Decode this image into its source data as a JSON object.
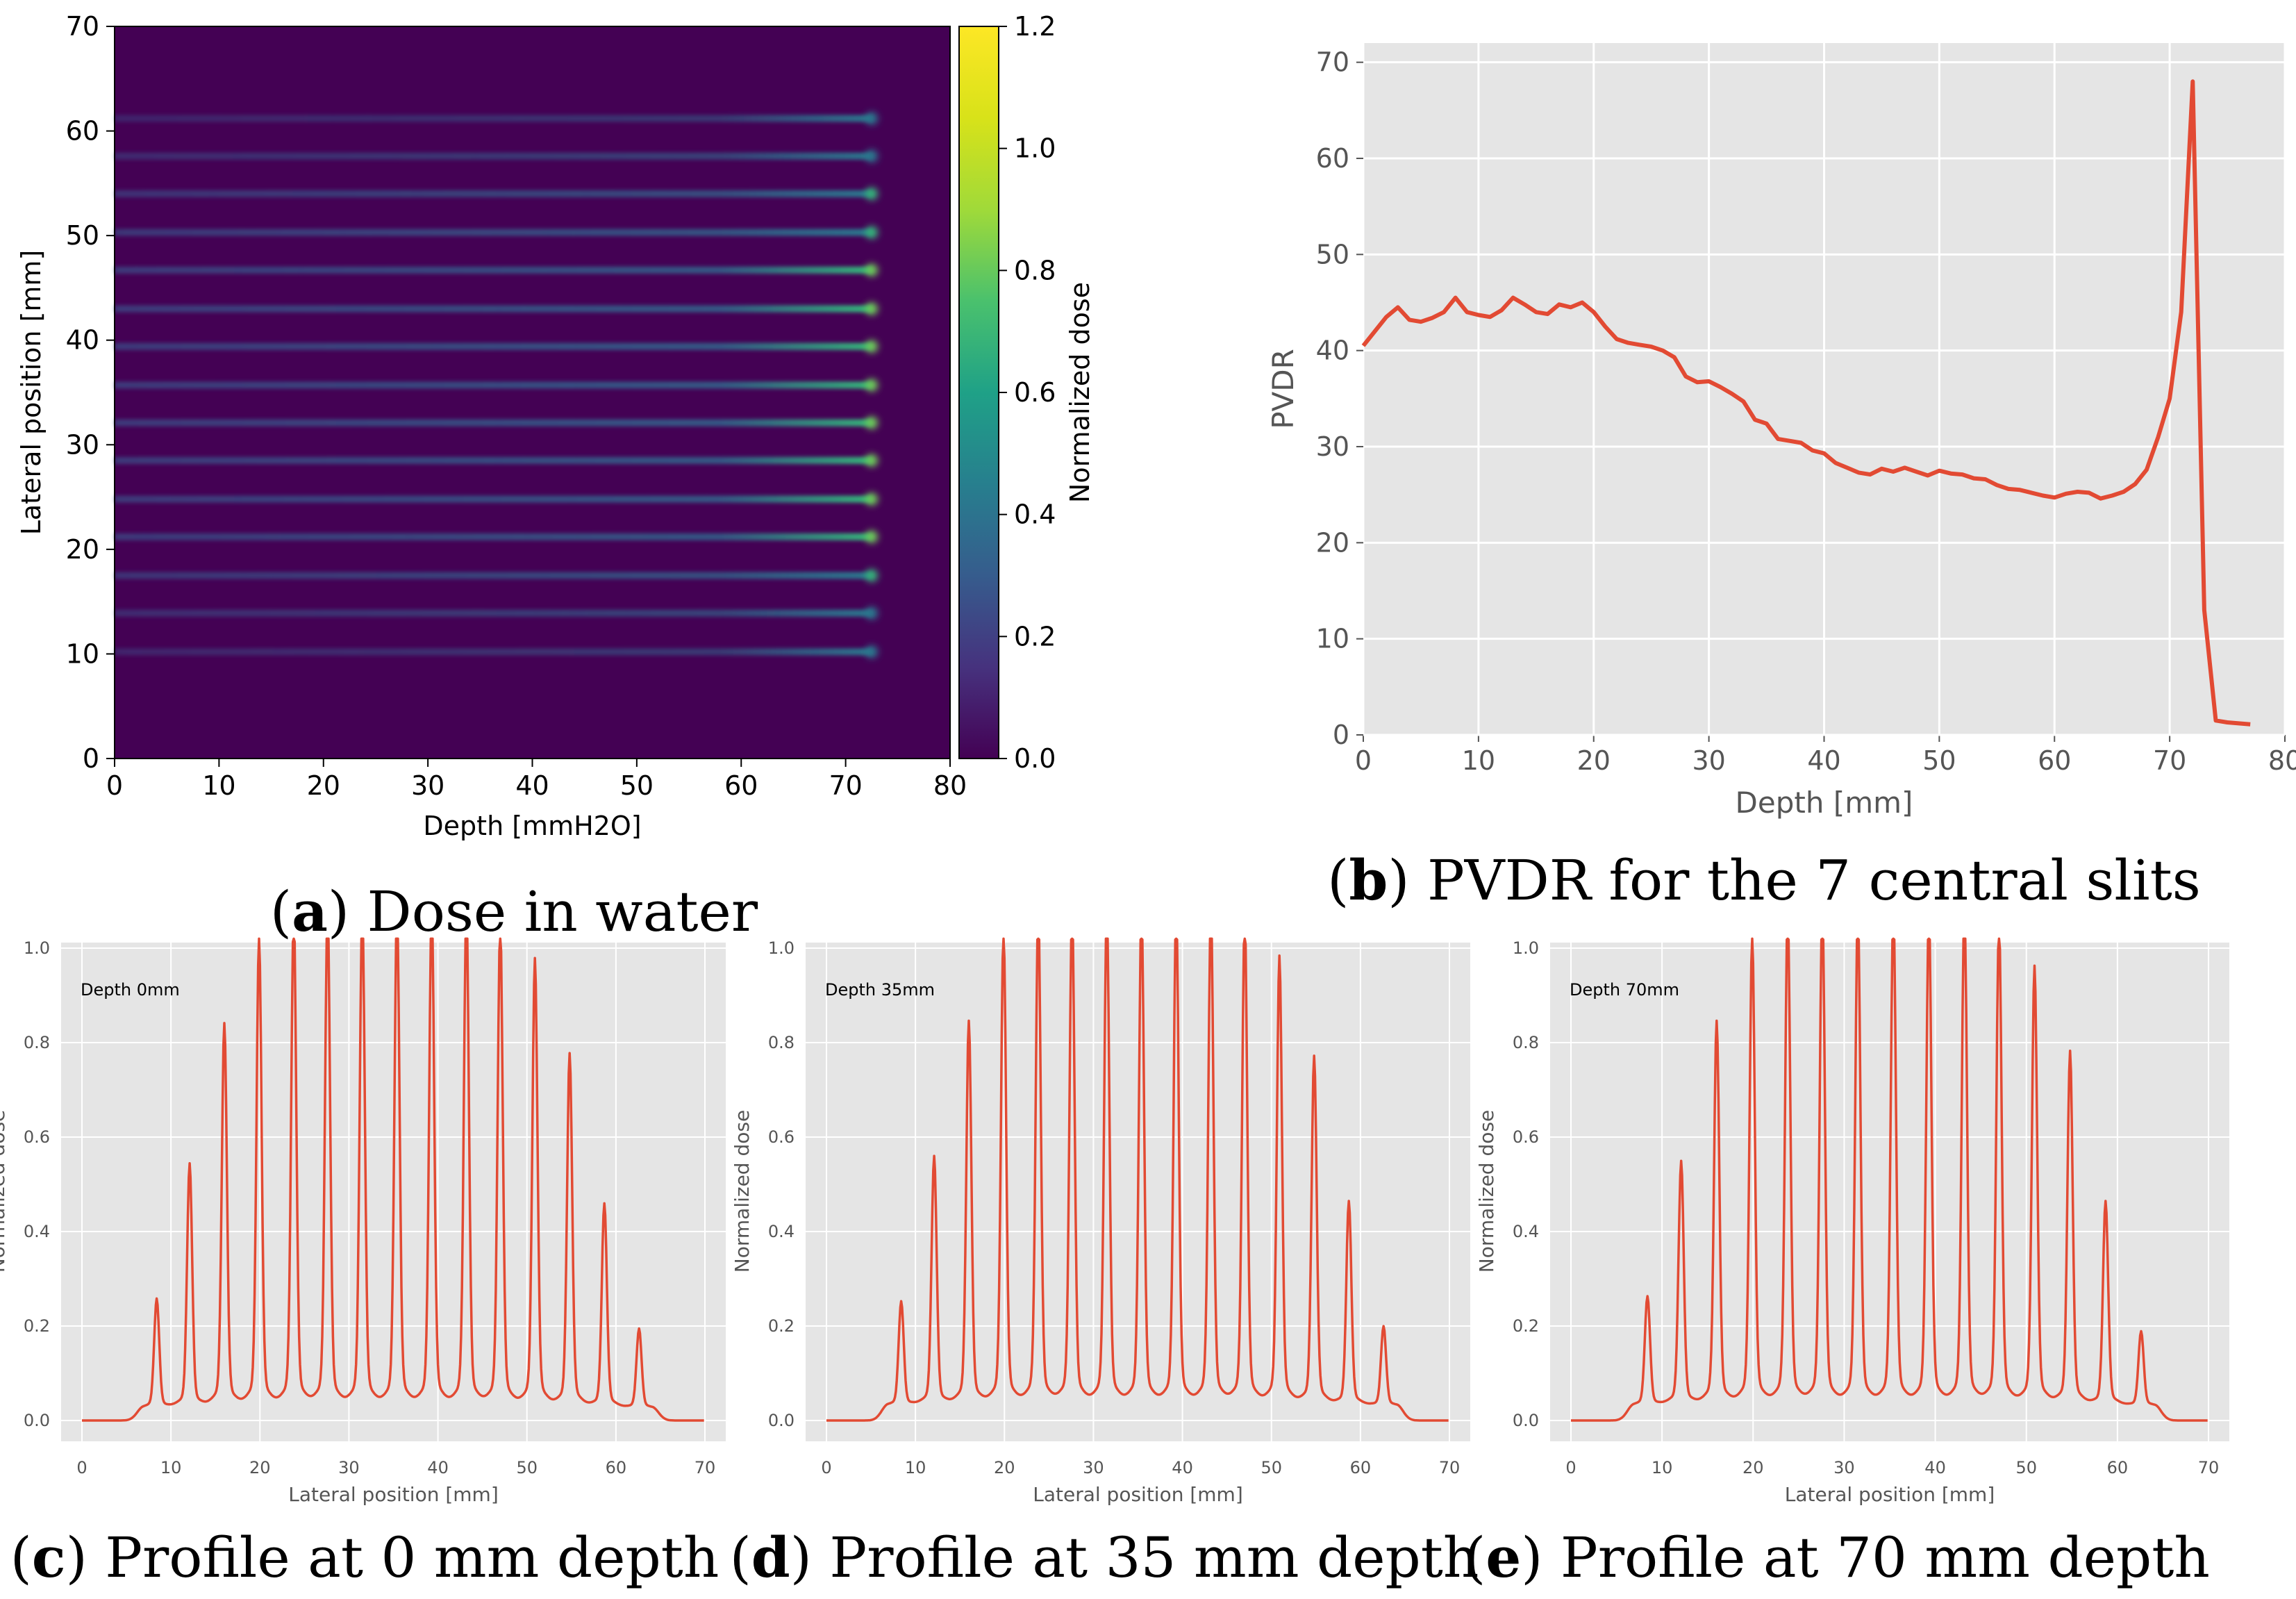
{
  "figure": {
    "captions": [
      {
        "letter": "a",
        "text": " Dose in water"
      },
      {
        "letter": "b",
        "text": " PVDR for the 7 central slits"
      },
      {
        "letter": "c",
        "text": " Profile at 0 mm depth"
      },
      {
        "letter": "d",
        "text": " Profile at 35 mm depth"
      },
      {
        "letter": "e",
        "text": " Profile at 70 mm depth"
      }
    ]
  },
  "chart_data": [
    {
      "id": "a",
      "type": "heatmap",
      "title": "",
      "xlabel": "Depth [mmH2O]",
      "ylabel": "Lateral position [mm]",
      "xlim": [
        0,
        80
      ],
      "ylim": [
        0,
        70
      ],
      "xticks": [
        0,
        10,
        20,
        30,
        40,
        50,
        60,
        70,
        80
      ],
      "yticks": [
        0,
        10,
        20,
        30,
        40,
        50,
        60,
        70
      ],
      "colorbar": {
        "label": "Normalized dose",
        "range": [
          0,
          1.2
        ],
        "ticks": [
          "0.0",
          "0.2",
          "0.4",
          "0.6",
          "0.8",
          "1.0",
          "1.2"
        ],
        "colormap": "viridis"
      },
      "slit_positions_mm": [
        10.2,
        13.9,
        17.5,
        21.2,
        24.8,
        28.5,
        32.1,
        35.7,
        39.4,
        43.0,
        46.7,
        50.3,
        54.0,
        57.6,
        61.2
      ],
      "slit_end_depth_mm": 72.5,
      "slit_peak_dose_at_end": [
        0.25,
        0.5,
        0.78,
        0.93,
        0.98,
        0.99,
        1.0,
        1.0,
        1.0,
        1.0,
        0.98,
        0.88,
        0.72,
        0.42,
        0.17
      ],
      "colors": {
        "background": "#440154"
      }
    },
    {
      "id": "b",
      "type": "line",
      "title": "",
      "xlabel": "Depth [mm]",
      "ylabel": "PVDR",
      "xlim": [
        0,
        80
      ],
      "ylim": [
        0,
        72
      ],
      "xticks": [
        0,
        10,
        20,
        30,
        40,
        50,
        60,
        70,
        80
      ],
      "yticks": [
        0,
        10,
        20,
        30,
        40,
        50,
        60,
        70
      ],
      "grid": true,
      "series": [
        {
          "x": [
            0,
            1,
            2,
            3,
            4,
            5,
            6,
            7,
            8,
            9,
            10,
            11,
            12,
            13,
            14,
            15,
            16,
            17,
            18,
            19,
            20,
            21,
            22,
            23,
            24,
            25,
            26,
            27,
            28,
            29,
            30,
            31,
            32,
            33,
            34,
            35,
            36,
            37,
            38,
            39,
            40,
            41,
            42,
            43,
            44,
            45,
            46,
            47,
            48,
            49,
            50,
            51,
            52,
            53,
            54,
            55,
            56,
            57,
            58,
            59,
            60,
            61,
            62,
            63,
            64,
            65,
            66,
            67,
            68,
            69,
            70,
            71,
            72,
            73,
            74,
            75,
            76,
            77
          ],
          "y": [
            40.5,
            42.0,
            43.5,
            44.5,
            43.2,
            43.0,
            43.4,
            44.0,
            45.5,
            44.0,
            43.7,
            43.5,
            44.2,
            45.5,
            44.8,
            44.0,
            43.8,
            44.8,
            44.5,
            45.0,
            44.0,
            42.5,
            41.2,
            40.8,
            40.6,
            40.4,
            40.0,
            39.3,
            37.3,
            36.7,
            36.8,
            36.2,
            35.5,
            34.7,
            32.8,
            32.4,
            30.8,
            30.6,
            30.4,
            29.6,
            29.3,
            28.3,
            27.8,
            27.3,
            27.1,
            27.7,
            27.4,
            27.8,
            27.4,
            27.0,
            27.5,
            27.2,
            27.1,
            26.7,
            26.6,
            26.0,
            25.6,
            25.5,
            25.2,
            24.9,
            24.7,
            25.1,
            25.3,
            25.2,
            24.6,
            24.9,
            25.3,
            26.1,
            27.6,
            31.0,
            35.0,
            44.0,
            68.0,
            13.0,
            1.5,
            1.3,
            1.2,
            1.1
          ]
        }
      ],
      "colors": {
        "line": "#e24a33",
        "background": "#e5e5e5"
      }
    },
    {
      "id": "c",
      "type": "line",
      "title": "",
      "annotation": "Depth 0mm",
      "xlabel": "Lateral position [mm]",
      "ylabel": "Normalized dose",
      "xlim": [
        0,
        70
      ],
      "ylim": [
        0,
        1.0
      ],
      "xticks": [
        0,
        10,
        20,
        30,
        40,
        50,
        60,
        70
      ],
      "yticks": [
        "0.0",
        "0.2",
        "0.4",
        "0.6",
        "0.8",
        "1.0"
      ],
      "grid": true,
      "peak_positions_mm": [
        8.4,
        12.1,
        16.0,
        19.9,
        23.8,
        27.6,
        31.5,
        35.4,
        39.3,
        43.2,
        47.0,
        50.9,
        54.8,
        58.7,
        62.6
      ],
      "peak_values": [
        0.22,
        0.49,
        0.77,
        0.94,
        0.99,
        1.0,
        1.0,
        1.0,
        1.0,
        1.0,
        0.97,
        0.9,
        0.71,
        0.41,
        0.16
      ],
      "valley_dose": 0.05,
      "colors": {
        "line": "#e24a33",
        "background": "#e5e5e5"
      }
    },
    {
      "id": "d",
      "type": "line",
      "title": "",
      "annotation": "Depth 35mm",
      "xlabel": "Lateral position [mm]",
      "ylabel": "Normalized dose",
      "xlim": [
        0,
        70
      ],
      "ylim": [
        0,
        1.0
      ],
      "xticks": [
        0,
        10,
        20,
        30,
        40,
        50,
        60,
        70
      ],
      "yticks": [
        "0.0",
        "0.2",
        "0.4",
        "0.6",
        "0.8",
        "1.0"
      ],
      "grid": true,
      "peak_positions_mm": [
        8.4,
        12.1,
        16.0,
        19.9,
        23.8,
        27.6,
        31.5,
        35.4,
        39.3,
        43.2,
        47.0,
        50.9,
        54.8,
        58.7,
        62.6
      ],
      "peak_values": [
        0.21,
        0.5,
        0.77,
        0.95,
        0.99,
        0.99,
        1.0,
        0.99,
        0.99,
        1.0,
        0.98,
        0.9,
        0.7,
        0.41,
        0.16
      ],
      "valley_dose": 0.06,
      "colors": {
        "line": "#e24a33",
        "background": "#e5e5e5"
      }
    },
    {
      "id": "e",
      "type": "line",
      "title": "",
      "annotation": "Depth 70mm",
      "xlabel": "Lateral position [mm]",
      "ylabel": "Normalized dose",
      "xlim": [
        0,
        70
      ],
      "ylim": [
        0,
        1.0
      ],
      "xticks": [
        0,
        10,
        20,
        30,
        40,
        50,
        60,
        70
      ],
      "yticks": [
        "0.0",
        "0.2",
        "0.4",
        "0.6",
        "0.8",
        "1.0"
      ],
      "grid": true,
      "peak_positions_mm": [
        8.4,
        12.1,
        16.0,
        19.9,
        23.8,
        27.6,
        31.5,
        35.4,
        39.3,
        43.2,
        47.0,
        50.9,
        54.8,
        58.7,
        62.6
      ],
      "peak_values": [
        0.22,
        0.49,
        0.77,
        0.94,
        0.99,
        0.99,
        0.99,
        0.99,
        0.99,
        1.0,
        0.97,
        0.88,
        0.71,
        0.41,
        0.15
      ],
      "valley_dose": 0.06,
      "colors": {
        "line": "#e24a33",
        "background": "#e5e5e5"
      }
    }
  ]
}
